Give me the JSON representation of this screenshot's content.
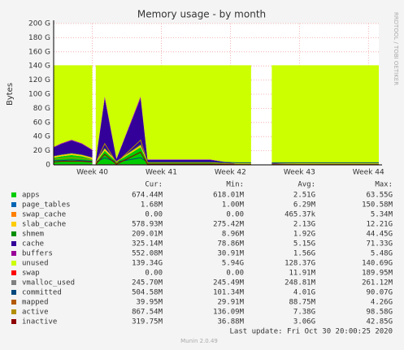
{
  "chart_data": {
    "type": "stacked-area",
    "title": "Memory usage - by month",
    "y_label": "Bytes",
    "side_note": "RRDTOOL / TOBI OETIKER",
    "footer": "Last update: Fri Oct 30 20:00:25 2020",
    "version": "Munin 2.0.49",
    "grid": true,
    "x": [
      39.44,
      39.55,
      39.7,
      39.85,
      40.0,
      40.02,
      40.05,
      40.18,
      40.35,
      40.7,
      40.8,
      41.0,
      41.3,
      41.7,
      42.1,
      42.3,
      42.45,
      42.6,
      43.0,
      43.5,
      44.0,
      44.15
    ],
    "xlim": [
      39.44,
      44.15
    ],
    "xticks": [
      {
        "value": 40,
        "label": "Week 40"
      },
      {
        "value": 41,
        "label": "Week 41"
      },
      {
        "value": 42,
        "label": "Week 42"
      },
      {
        "value": 43,
        "label": "Week 43"
      },
      {
        "value": 44,
        "label": "Week 44"
      }
    ],
    "ylim": [
      0,
      200
    ],
    "yticks": [
      0,
      {
        "value": 20,
        "label": "20 G"
      },
      {
        "value": 40,
        "label": "40 G"
      },
      {
        "value": 60,
        "label": "60 G"
      },
      {
        "value": 80,
        "label": "80 G"
      },
      {
        "value": 100,
        "label": "100 G"
      },
      {
        "value": 120,
        "label": "120 G"
      },
      {
        "value": 140,
        "label": "140 G"
      },
      {
        "value": 160,
        "label": "160 G"
      },
      {
        "value": 180,
        "label": "180 G"
      },
      {
        "value": 200,
        "label": "200 G"
      }
    ],
    "stat_headers": [
      "Cur:",
      "Min:",
      "Avg:",
      "Max:"
    ],
    "series": [
      {
        "name": "apps",
        "color": "#00cc00",
        "kind": "area",
        "stats": [
          "674.44M",
          "618.01M",
          "2.51G",
          "63.55G"
        ],
        "values": [
          10,
          12,
          14,
          12,
          8,
          null,
          3,
          20,
          4,
          25,
          3,
          3,
          3,
          3,
          0.5,
          0.5,
          null,
          1,
          0.5,
          0.5,
          0.5,
          0.5
        ]
      },
      {
        "name": "page_tables",
        "color": "#0066b3",
        "kind": "area",
        "stats": [
          "1.68M",
          "1.00M",
          "6.29M",
          "150.58M"
        ],
        "values": [
          0.002,
          0.002,
          0.002,
          0.002,
          0.002,
          null,
          0.002,
          0.002,
          0.002,
          0.002,
          0.002,
          0.002,
          0.002,
          0.002,
          0.002,
          0.002,
          null,
          0.002,
          0.002,
          0.002,
          0.002,
          0.002
        ]
      },
      {
        "name": "swap_cache",
        "color": "#ff8000",
        "kind": "area",
        "stats": [
          "0.00",
          "0.00",
          "465.37k",
          "5.34M"
        ],
        "values": [
          0,
          0,
          0,
          0,
          0,
          null,
          0,
          0,
          0,
          0,
          0,
          0,
          0,
          0,
          0,
          0,
          null,
          0,
          0,
          0,
          0,
          0
        ]
      },
      {
        "name": "slab_cache",
        "color": "#ffcc00",
        "kind": "area",
        "stats": [
          "578.93M",
          "275.42M",
          "2.13G",
          "12.21G"
        ],
        "values": [
          2,
          2,
          2,
          2,
          2,
          null,
          1,
          3,
          1,
          3,
          1,
          1,
          1,
          1,
          0.3,
          0.3,
          null,
          0.3,
          0.3,
          0.3,
          0.3,
          0.3
        ]
      },
      {
        "name": "shmem",
        "color": "#008f00",
        "kind": "area",
        "stats": [
          "209.01M",
          "8.96M",
          "1.92G",
          "44.45G"
        ],
        "values": [
          0.5,
          0.5,
          0.5,
          0.5,
          0.5,
          null,
          0.2,
          1,
          0.2,
          1,
          0.2,
          0.2,
          0.2,
          0.2,
          0.1,
          0.1,
          null,
          0.1,
          0.1,
          0.1,
          0.1,
          0.1
        ]
      },
      {
        "name": "cache",
        "color": "#330099",
        "kind": "area",
        "stats": [
          "325.14M",
          "78.86M",
          "5.15G",
          "71.33G"
        ],
        "values": [
          12,
          15,
          18,
          15,
          10,
          null,
          2,
          70,
          3,
          65,
          3,
          3,
          3,
          3,
          0.5,
          0.5,
          null,
          1,
          0.5,
          0.5,
          0.5,
          0.5
        ]
      },
      {
        "name": "buffers",
        "color": "#990099",
        "kind": "area",
        "stats": [
          "552.08M",
          "30.91M",
          "1.56G",
          "5.48G"
        ],
        "values": [
          1,
          1,
          1,
          1,
          1,
          null,
          0.5,
          3,
          0.5,
          3,
          0.5,
          0.5,
          0.5,
          0.5,
          0.1,
          0.1,
          null,
          0.1,
          0.1,
          0.1,
          0.1,
          0.1
        ]
      },
      {
        "name": "unused",
        "color": "#ccff00",
        "kind": "area",
        "stats": [
          "139.34G",
          "5.94G",
          "128.37G",
          "140.69G"
        ],
        "values": [
          115.5,
          110.5,
          105.5,
          110.5,
          119.5,
          null,
          134.3,
          44,
          132.3,
          44,
          133.3,
          133.3,
          133.3,
          133.3,
          139.5,
          139.5,
          null,
          138.5,
          139.5,
          139.5,
          139.5,
          139.5
        ]
      },
      {
        "name": "swap",
        "color": "#ff0000",
        "kind": "area",
        "stats": [
          "0.00",
          "0.00",
          "11.91M",
          "189.95M"
        ],
        "values": [
          0,
          0,
          0,
          0,
          0,
          null,
          0,
          0,
          0,
          0,
          0,
          0,
          0,
          0,
          0,
          0,
          null,
          0,
          0,
          0,
          0,
          0
        ]
      },
      {
        "name": "vmalloc_used",
        "color": "#808080",
        "kind": "line",
        "stats": [
          "245.70M",
          "245.49M",
          "248.81M",
          "261.12M"
        ],
        "values": [
          0.25,
          0.25,
          0.25,
          0.25,
          0.25,
          null,
          0.25,
          0.25,
          0.25,
          0.25,
          0.25,
          0.25,
          0.25,
          0.25,
          0.25,
          0.25,
          null,
          0.25,
          0.25,
          0.25,
          0.25,
          0.25
        ]
      },
      {
        "name": "committed",
        "color": "#00487d",
        "kind": "line",
        "stats": [
          "504.58M",
          "101.34M",
          "4.01G",
          "90.07G"
        ],
        "values": [
          6,
          6,
          7,
          6,
          5,
          null,
          4,
          10,
          4,
          10,
          4,
          4,
          4,
          4,
          3,
          3,
          null,
          3,
          3,
          3,
          3,
          3
        ]
      },
      {
        "name": "mapped",
        "color": "#b35a00",
        "kind": "line",
        "stats": [
          "39.95M",
          "29.91M",
          "88.75M",
          "4.26G"
        ],
        "values": [
          0.09,
          0.09,
          0.09,
          0.09,
          0.09,
          null,
          0.09,
          0.09,
          0.09,
          0.09,
          0.09,
          0.09,
          0.09,
          0.09,
          0.09,
          0.09,
          null,
          0.09,
          0.09,
          0.09,
          0.09,
          0.09
        ]
      },
      {
        "name": "active",
        "color": "#b38f00",
        "kind": "line",
        "stats": [
          "867.54M",
          "136.09M",
          "7.38G",
          "98.58G"
        ],
        "values": [
          8,
          9,
          10,
          9,
          7,
          null,
          3,
          30,
          3,
          35,
          3,
          3,
          3,
          3,
          1,
          1,
          null,
          1,
          1,
          1,
          1,
          1
        ]
      },
      {
        "name": "inactive",
        "color": "#8f0000",
        "kind": "line",
        "stats": [
          "319.75M",
          "36.88M",
          "3.06G",
          "42.85G"
        ],
        "values": [
          4,
          5,
          5,
          5,
          4,
          null,
          1,
          15,
          1,
          18,
          1,
          1,
          1,
          1,
          0.3,
          0.3,
          null,
          0.3,
          0.3,
          0.3,
          0.3,
          0.3
        ]
      }
    ]
  }
}
